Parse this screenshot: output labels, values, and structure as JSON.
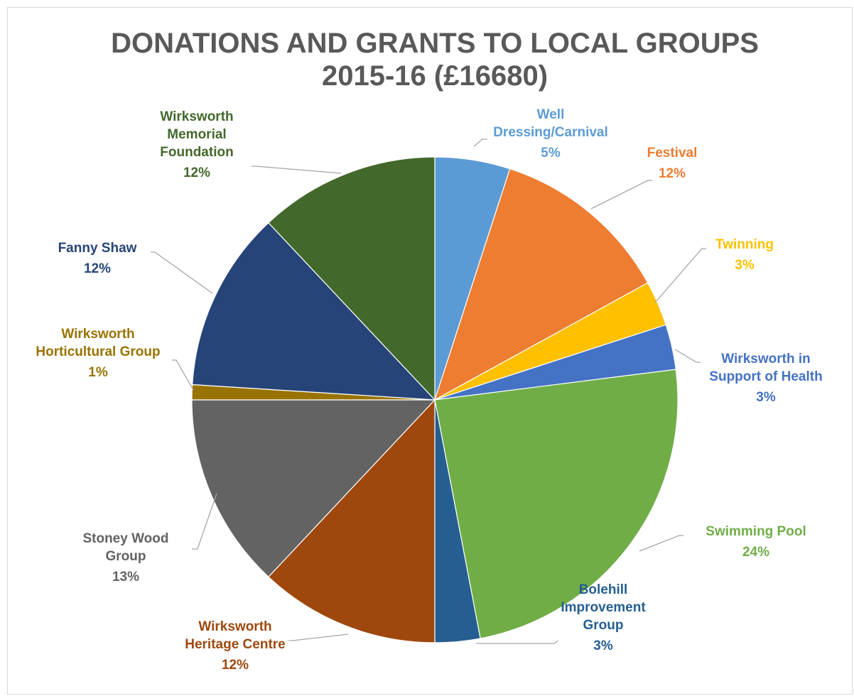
{
  "chart_data": {
    "type": "pie",
    "title": "DONATIONS AND GRANTS TO LOCAL GROUPS",
    "subtitle": "2015-16 (£16680)",
    "legend": "none",
    "slices": [
      {
        "label": "Well Dressing/Carnival",
        "label_lines": [
          "Well",
          "Dressing/Carnival"
        ],
        "percent_label": "5%",
        "value": 5,
        "color": "#5b9bd5",
        "label_color": "#5b9bd5"
      },
      {
        "label": "Festival",
        "label_lines": [
          "Festival"
        ],
        "percent_label": "12%",
        "value": 12,
        "color": "#ed7d31",
        "label_color": "#ed7d31"
      },
      {
        "label": "Twinning",
        "label_lines": [
          "Twinning"
        ],
        "percent_label": "3%",
        "value": 3,
        "color": "#ffc000",
        "label_color": "#ffc000"
      },
      {
        "label": "Wirksworth in Support of Health",
        "label_lines": [
          "Wirksworth in",
          "Support of Health"
        ],
        "percent_label": "3%",
        "value": 3,
        "color": "#4472c4",
        "label_color": "#4472c4"
      },
      {
        "label": "Swimming Pool",
        "label_lines": [
          "Swimming Pool"
        ],
        "percent_label": "24%",
        "value": 24,
        "color": "#70ad47",
        "label_color": "#70ad47"
      },
      {
        "label": "Bolehill Improvement Group",
        "label_lines": [
          "Bolehill",
          "Improvement",
          "Group"
        ],
        "percent_label": "3%",
        "value": 3,
        "color": "#255e91",
        "label_color": "#255e91"
      },
      {
        "label": "Wirksworth Heritage Centre",
        "label_lines": [
          "Wirksworth",
          "Heritage Centre"
        ],
        "percent_label": "12%",
        "value": 12,
        "color": "#9e480e",
        "label_color": "#9e480e"
      },
      {
        "label": "Stoney Wood Group",
        "label_lines": [
          "Stoney Wood",
          "Group"
        ],
        "percent_label": "13%",
        "value": 13,
        "color": "#636363",
        "label_color": "#636363"
      },
      {
        "label": "Wirksworth Horticultural Group",
        "label_lines": [
          "Wirksworth",
          "Horticultural Group"
        ],
        "percent_label": "1%",
        "value": 1,
        "color": "#997300",
        "label_color": "#997300"
      },
      {
        "label": "Fanny Shaw",
        "label_lines": [
          "Fanny Shaw"
        ],
        "percent_label": "12%",
        "value": 12,
        "color": "#264478",
        "label_color": "#264478"
      },
      {
        "label": "Wirksworth Memorial Foundation",
        "label_lines": [
          "Wirksworth",
          "Memorial",
          "Foundation"
        ],
        "percent_label": "12%",
        "value": 12,
        "color": "#43682b",
        "label_color": "#43682b"
      }
    ]
  }
}
